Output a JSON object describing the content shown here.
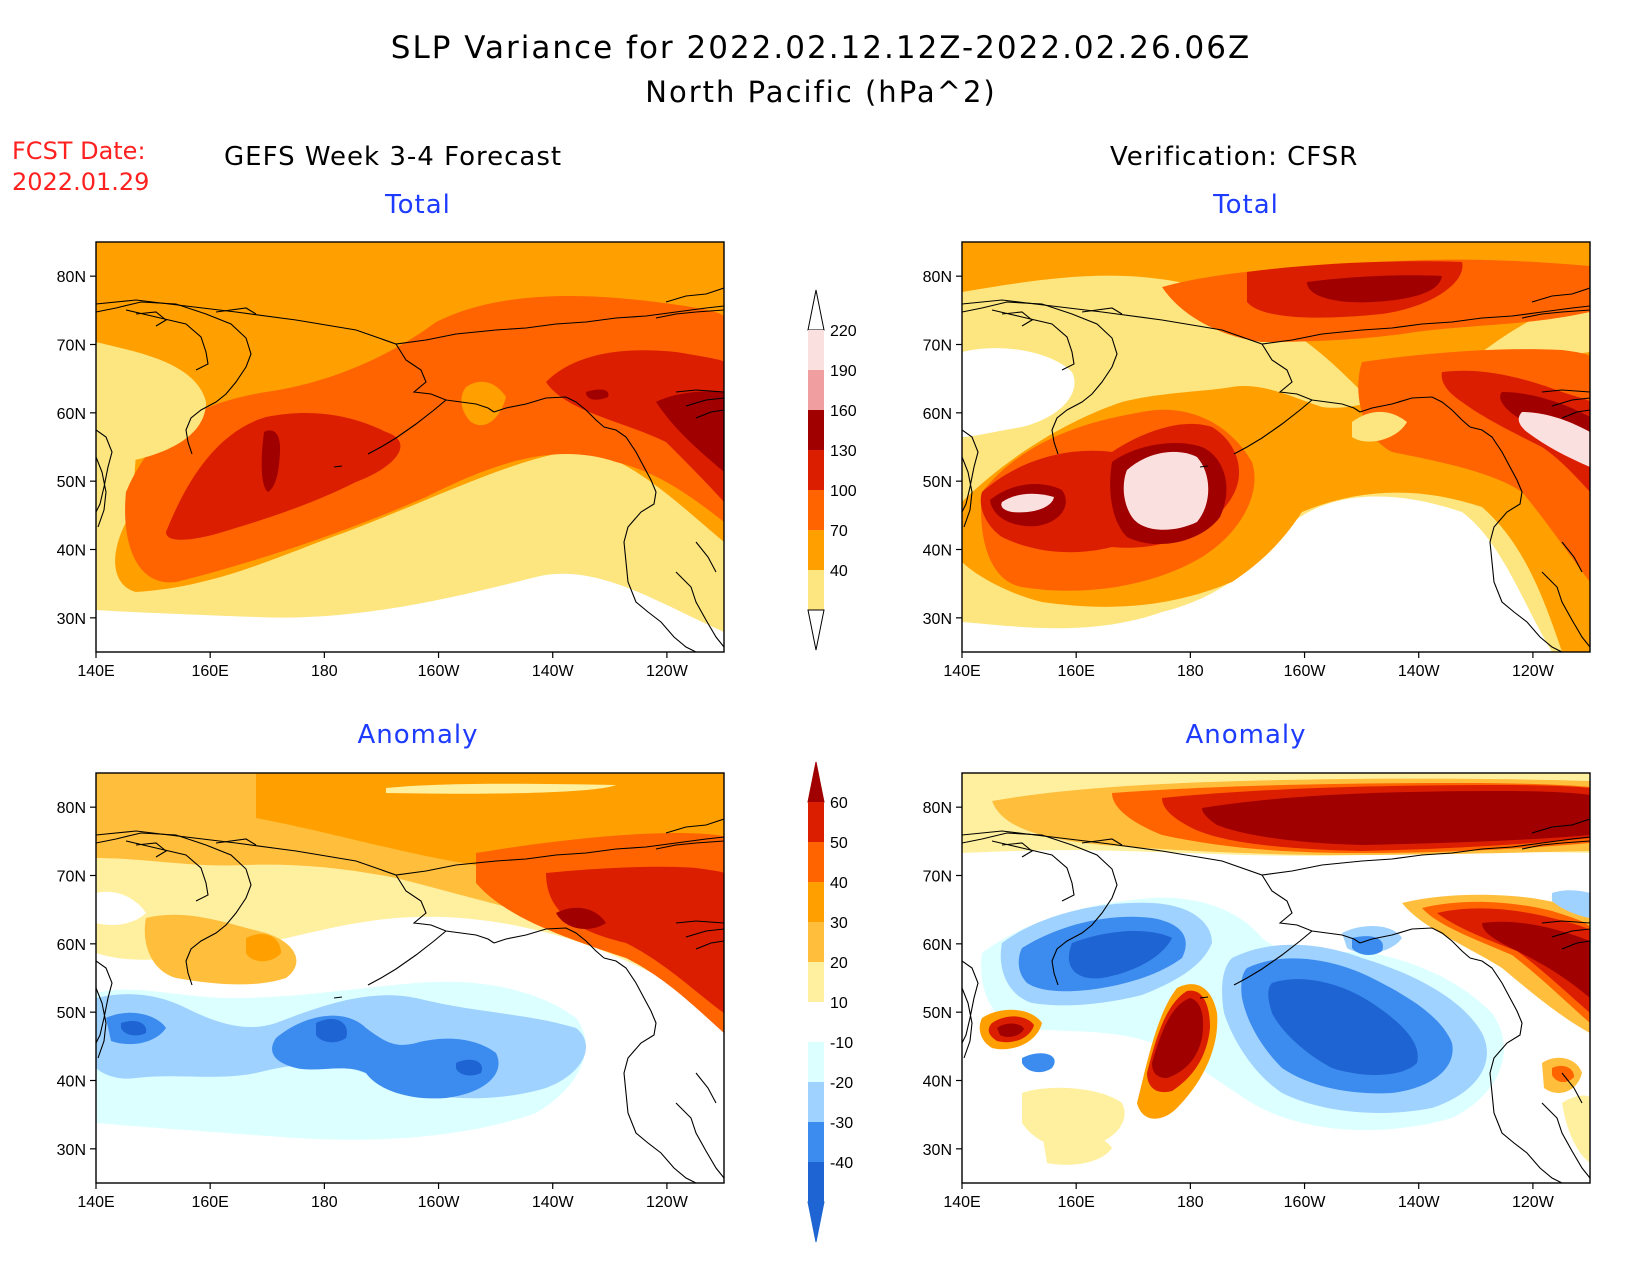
{
  "header": {
    "title_line1": "SLP Variance for 2022.02.12.12Z-2022.02.26.06Z",
    "title_line2": "North Pacific (hPa^2)",
    "fcst_label": "FCST Date:",
    "fcst_date": "2022.01.29"
  },
  "columns": {
    "left": "GEFS Week 3-4 Forecast",
    "right": "Verification: CFSR"
  },
  "panels": [
    {
      "title": "Total",
      "field": "forecast_total"
    },
    {
      "title": "Total",
      "field": "verification_total"
    },
    {
      "title": "Anomaly",
      "field": "forecast_anomaly"
    },
    {
      "title": "Anomaly",
      "field": "verification_anomaly"
    }
  ],
  "axes": {
    "x_ticks": [
      "140E",
      "160E",
      "180",
      "160W",
      "140W",
      "120W"
    ],
    "y_ticks": [
      "80N",
      "70N",
      "60N",
      "50N",
      "40N",
      "30N"
    ],
    "lon_range_east": [
      140,
      250
    ],
    "lat_range": [
      25,
      85
    ]
  },
  "colorbars": {
    "total": {
      "labels": [
        "220",
        "190",
        "160",
        "130",
        "100",
        "70",
        "40"
      ],
      "colors": [
        "#fbe0e0",
        "#f09ea0",
        "#a00000",
        "#dc1e00",
        "#ff6400",
        "#ffa000",
        "#fde680"
      ]
    },
    "anomaly": {
      "labels": [
        "60",
        "50",
        "40",
        "30",
        "20",
        "10",
        "-10",
        "-20",
        "-30",
        "-40"
      ],
      "colors": [
        "#a00000",
        "#dc1e00",
        "#ff6400",
        "#ffa000",
        "#ffbe3c",
        "#fff0a0",
        "#ffffff",
        "#dcffff",
        "#a0d2ff",
        "#3c8cf0",
        "#1e64d2"
      ]
    }
  },
  "chart_data": {
    "type": "heatmap",
    "title": "SLP Variance for 2022.02.12.12Z-2022.02.26.06Z North Pacific (hPa^2)",
    "xlabel": "",
    "ylabel": "",
    "x_ticks": [
      "140E",
      "160E",
      "180",
      "160W",
      "140W",
      "120W"
    ],
    "y_ticks": [
      "30N",
      "40N",
      "50N",
      "60N",
      "70N",
      "80N"
    ],
    "panels": [
      {
        "name": "GEFS Week 3-4 Forecast Total",
        "levels": [
          40,
          70,
          100,
          130,
          160,
          190,
          220
        ]
      },
      {
        "name": "Verification: CFSR Total",
        "levels": [
          40,
          70,
          100,
          130,
          160,
          190,
          220
        ]
      },
      {
        "name": "GEFS Week 3-4 Forecast Anomaly",
        "levels": [
          -40,
          -30,
          -20,
          -10,
          10,
          20,
          30,
          40,
          50,
          60
        ]
      },
      {
        "name": "Verification: CFSR Anomaly",
        "levels": [
          -40,
          -30,
          -20,
          -10,
          10,
          20,
          30,
          40,
          50,
          60
        ]
      }
    ]
  }
}
